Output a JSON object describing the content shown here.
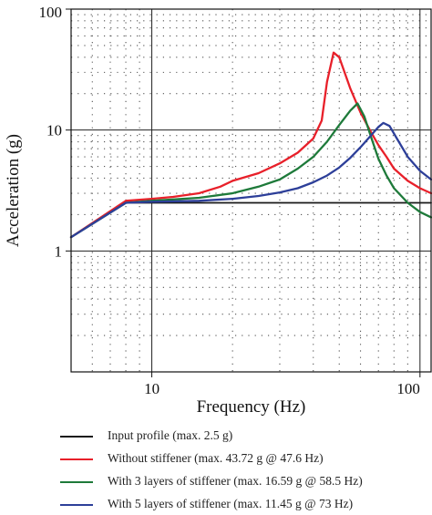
{
  "chart_data": {
    "type": "line",
    "xlabel": "Frequency (Hz)",
    "ylabel": "Acceleration (g)",
    "x_scale": "log",
    "y_scale": "log",
    "xlim": [
      5,
      110
    ],
    "ylim": [
      0.1,
      100
    ],
    "grid": true,
    "x_ticks": [
      {
        "value": 10,
        "label": "10"
      },
      {
        "value": 100,
        "label": "100"
      }
    ],
    "y_ticks": [
      {
        "value": 1,
        "label": "1"
      },
      {
        "value": 10,
        "label": "10"
      },
      {
        "value": 100,
        "label": "100"
      }
    ],
    "legend_position": "bottom",
    "series": [
      {
        "name": "Input profile (max. 2.5 g)",
        "color": "#1a1a1a",
        "points": [
          [
            5,
            1.3
          ],
          [
            8,
            2.5
          ],
          [
            110,
            2.5
          ]
        ]
      },
      {
        "name": "Without stiffener (max. 43.72 g @ 47.6 Hz)",
        "color": "#e8202a",
        "points": [
          [
            5,
            1.3
          ],
          [
            8,
            2.6
          ],
          [
            10,
            2.7
          ],
          [
            12,
            2.8
          ],
          [
            15,
            3.0
          ],
          [
            18,
            3.4
          ],
          [
            20,
            3.8
          ],
          [
            25,
            4.4
          ],
          [
            30,
            5.3
          ],
          [
            35,
            6.5
          ],
          [
            40,
            8.5
          ],
          [
            43,
            12
          ],
          [
            45,
            25
          ],
          [
            47.6,
            43.72
          ],
          [
            50,
            40
          ],
          [
            55,
            22
          ],
          [
            60,
            14
          ],
          [
            65,
            10
          ],
          [
            70,
            7.5
          ],
          [
            75,
            6
          ],
          [
            80,
            4.8
          ],
          [
            90,
            3.8
          ],
          [
            100,
            3.3
          ],
          [
            110,
            3.0
          ]
        ]
      },
      {
        "name": "With 3 layers of stiffener (max. 16.59 g @ 58.5 Hz)",
        "color": "#1e7a3a",
        "points": [
          [
            5,
            1.3
          ],
          [
            8,
            2.5
          ],
          [
            10,
            2.6
          ],
          [
            15,
            2.75
          ],
          [
            20,
            3.0
          ],
          [
            25,
            3.4
          ],
          [
            30,
            3.9
          ],
          [
            35,
            4.8
          ],
          [
            40,
            6.0
          ],
          [
            45,
            8.0
          ],
          [
            50,
            11
          ],
          [
            55,
            14.5
          ],
          [
            58.5,
            16.59
          ],
          [
            62,
            13
          ],
          [
            66,
            8.5
          ],
          [
            70,
            5.8
          ],
          [
            75,
            4.2
          ],
          [
            80,
            3.3
          ],
          [
            90,
            2.5
          ],
          [
            100,
            2.1
          ],
          [
            110,
            1.9
          ]
        ]
      },
      {
        "name": "With 5 layers of stiffener (max. 11.45 g @ 73 Hz)",
        "color": "#2d3f99",
        "points": [
          [
            5,
            1.3
          ],
          [
            8,
            2.5
          ],
          [
            10,
            2.55
          ],
          [
            15,
            2.6
          ],
          [
            20,
            2.7
          ],
          [
            25,
            2.85
          ],
          [
            30,
            3.05
          ],
          [
            35,
            3.3
          ],
          [
            40,
            3.7
          ],
          [
            45,
            4.2
          ],
          [
            50,
            4.9
          ],
          [
            55,
            5.9
          ],
          [
            60,
            7.2
          ],
          [
            65,
            8.8
          ],
          [
            70,
            10.6
          ],
          [
            73,
            11.45
          ],
          [
            77,
            10.8
          ],
          [
            82,
            8.5
          ],
          [
            90,
            6.0
          ],
          [
            100,
            4.6
          ],
          [
            110,
            3.9
          ]
        ]
      }
    ]
  }
}
